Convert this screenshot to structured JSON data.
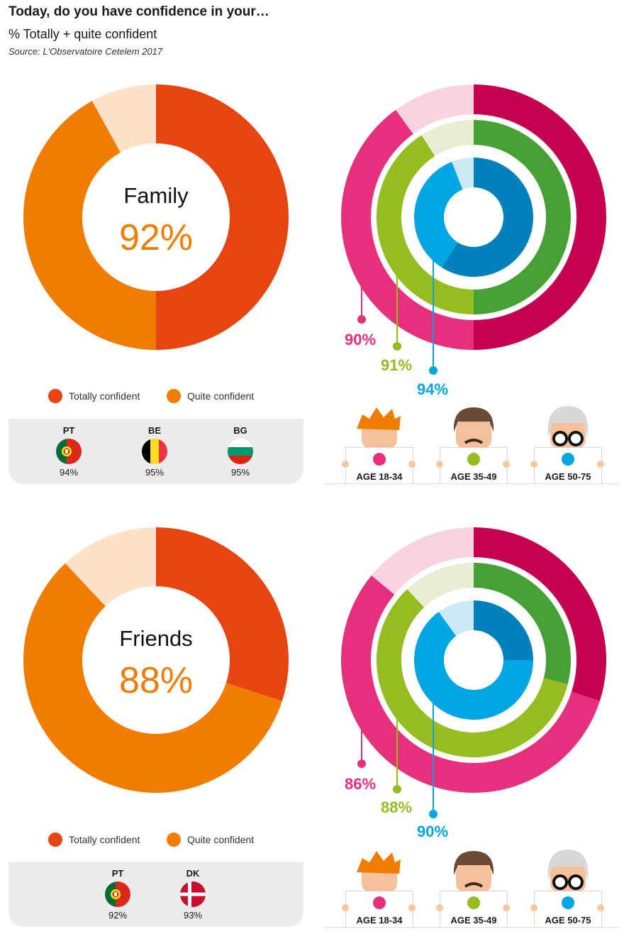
{
  "header": {
    "title": "Today, do you have confidence in your…",
    "subtitle": "% Totally + quite confident",
    "source": "Source: L'Observatoire Cetelem 2017"
  },
  "colors": {
    "totally": "#e64512",
    "quite": "#f07d00",
    "rest": "#fbe2c8",
    "age_18_34": "#e6307d",
    "age_35_49": "#95bc21",
    "age_50_75": "#00a6e2"
  },
  "legend": {
    "totally": "Totally confident",
    "quite": "Quite confident"
  },
  "ages": [
    "AGE 18-34",
    "AGE 35-49",
    "AGE 50-75"
  ],
  "chart_data": [
    {
      "type": "pie",
      "name": "Family",
      "center_label": "Family",
      "center_value": "92%",
      "values": {
        "totally": 50,
        "quite": 42,
        "other": 8
      },
      "age_rings": [
        {
          "age": "AGE 18-34",
          "label": "90%",
          "total": 90,
          "totally": 50
        },
        {
          "age": "AGE 35-49",
          "label": "91%",
          "total": 91,
          "totally": 50
        },
        {
          "age": "AGE 50-75",
          "label": "94%",
          "total": 94,
          "totally": 59
        }
      ],
      "countries": [
        {
          "code": "PT",
          "value": "94%",
          "flag": "portugal"
        },
        {
          "code": "BE",
          "value": "95%",
          "flag": "belgium"
        },
        {
          "code": "BG",
          "value": "95%",
          "flag": "bulgaria"
        }
      ]
    },
    {
      "type": "pie",
      "name": "Friends",
      "center_label": "Friends",
      "center_value": "88%",
      "values": {
        "totally": 30,
        "quite": 58,
        "other": 12
      },
      "age_rings": [
        {
          "age": "AGE 18-34",
          "label": "86%",
          "total": 86,
          "totally": 30
        },
        {
          "age": "AGE 35-49",
          "label": "88%",
          "total": 88,
          "totally": 29
        },
        {
          "age": "AGE 50-75",
          "label": "90%",
          "total": 90,
          "totally": 25
        }
      ],
      "countries": [
        {
          "code": "PT",
          "value": "92%",
          "flag": "portugal"
        },
        {
          "code": "DK",
          "value": "93%",
          "flag": "denmark"
        }
      ]
    }
  ]
}
